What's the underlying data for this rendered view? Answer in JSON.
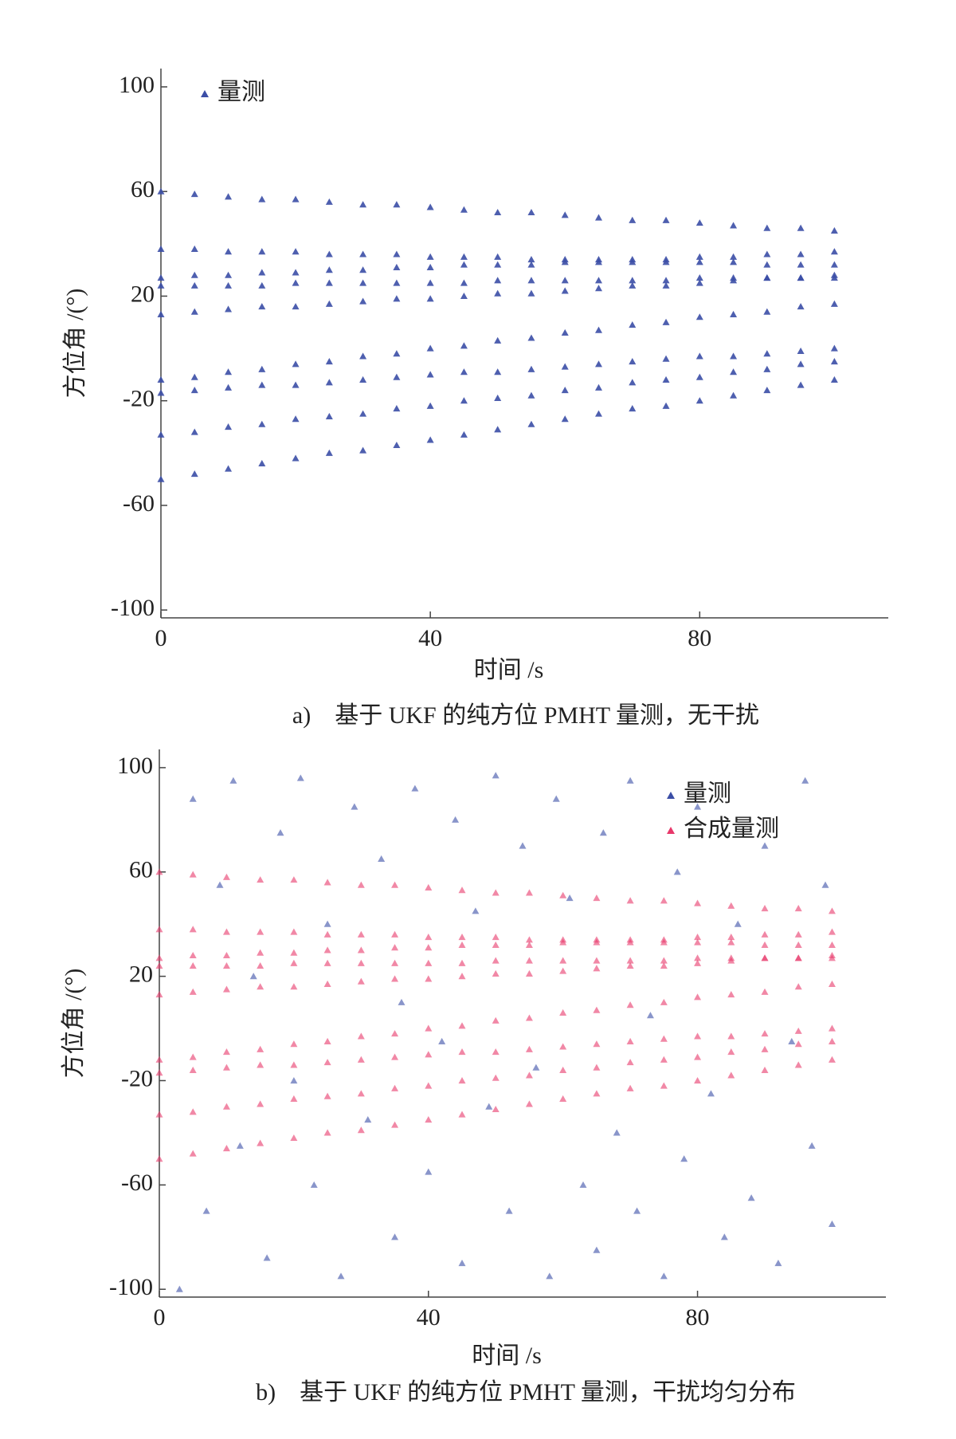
{
  "chart_data": [
    {
      "type": "scatter",
      "caption": "a)　基于 UKF 的纯方位 PMHT 量测，无干扰",
      "x_label": "时间 /s",
      "y_label": "方位角 /(°)",
      "xlim": [
        0,
        108
      ],
      "ylim": [
        -103,
        107
      ],
      "xticks": [
        0,
        40,
        80
      ],
      "yticks": [
        -100,
        -60,
        -20,
        20,
        60,
        100
      ],
      "legend": "upper left",
      "series": [
        {
          "name": "量测",
          "color": "#3b4ea6",
          "x": [
            0,
            5,
            10,
            15,
            20,
            25,
            30,
            35,
            40,
            45,
            50,
            55,
            60,
            65,
            70,
            75,
            80,
            85,
            90,
            95,
            100,
            0,
            5,
            10,
            15,
            20,
            25,
            30,
            35,
            40,
            45,
            50,
            55,
            60,
            65,
            70,
            75,
            80,
            85,
            90,
            95,
            100,
            0,
            5,
            10,
            15,
            20,
            25,
            30,
            35,
            40,
            45,
            50,
            55,
            60,
            65,
            70,
            75,
            80,
            85,
            90,
            95,
            100,
            0,
            5,
            10,
            15,
            20,
            25,
            30,
            35,
            40,
            45,
            50,
            55,
            60,
            65,
            70,
            75,
            80,
            85,
            90,
            95,
            100,
            0,
            5,
            10,
            15,
            20,
            25,
            30,
            35,
            40,
            45,
            50,
            55,
            60,
            65,
            70,
            75,
            80,
            85,
            90,
            95,
            100,
            0,
            5,
            10,
            15,
            20,
            25,
            30,
            35,
            40,
            45,
            50,
            55,
            60,
            65,
            70,
            75,
            80,
            85,
            90,
            95,
            100,
            0,
            5,
            10,
            15,
            20,
            25,
            30,
            35,
            40,
            45,
            50,
            55,
            60,
            65,
            70,
            75,
            80,
            85,
            90,
            95,
            100,
            0,
            5,
            10,
            15,
            20,
            25,
            30,
            35,
            40,
            45,
            50,
            55,
            60,
            65,
            70,
            75,
            80,
            85,
            90,
            95,
            100,
            0,
            5,
            10,
            15,
            20,
            25,
            30,
            35,
            40,
            45,
            50,
            55,
            60,
            65,
            70,
            75,
            80,
            85,
            90,
            95,
            100
          ],
          "values": [
            60,
            59,
            58,
            57,
            57,
            56,
            55,
            55,
            54,
            53,
            52,
            52,
            51,
            50,
            49,
            49,
            48,
            47,
            46,
            46,
            45,
            38,
            38,
            37,
            37,
            37,
            36,
            36,
            36,
            35,
            35,
            35,
            34,
            34,
            34,
            33,
            33,
            33,
            33,
            32,
            32,
            32,
            27,
            28,
            28,
            29,
            29,
            30,
            30,
            31,
            31,
            32,
            32,
            32,
            33,
            33,
            34,
            34,
            35,
            35,
            36,
            36,
            37,
            24,
            24,
            24,
            24,
            25,
            25,
            25,
            25,
            25,
            25,
            26,
            26,
            26,
            26,
            26,
            26,
            27,
            27,
            27,
            27,
            27,
            13,
            14,
            15,
            16,
            16,
            17,
            18,
            19,
            19,
            20,
            21,
            21,
            22,
            23,
            24,
            24,
            25,
            26,
            27,
            27,
            28,
            -12,
            -11,
            -9,
            -8,
            -6,
            -5,
            -3,
            -2,
            0,
            1,
            3,
            4,
            6,
            7,
            9,
            10,
            12,
            13,
            14,
            16,
            17,
            -17,
            -16,
            -15,
            -14,
            -14,
            -13,
            -12,
            -11,
            -10,
            -9,
            -9,
            -8,
            -7,
            -6,
            -5,
            -4,
            -3,
            -3,
            -2,
            -1,
            0,
            -33,
            -32,
            -30,
            -29,
            -27,
            -26,
            -25,
            -23,
            -22,
            -20,
            -19,
            -18,
            -16,
            -15,
            -13,
            -12,
            -11,
            -9,
            -8,
            -6,
            -5,
            -50,
            -48,
            -46,
            -44,
            -42,
            -40,
            -39,
            -37,
            -35,
            -33,
            -31,
            -29,
            -27,
            -25,
            -23,
            -22,
            -20,
            -18,
            -16,
            -14,
            -12
          ]
        }
      ]
    },
    {
      "type": "scatter",
      "caption": "b)　基于 UKF 的纯方位 PMHT 量测，干扰均匀分布",
      "x_label": "时间 /s",
      "y_label": "方位角 /(°)",
      "xlim": [
        0,
        108
      ],
      "ylim": [
        -103,
        107
      ],
      "xticks": [
        0,
        40,
        80
      ],
      "yticks": [
        -100,
        -60,
        -20,
        20,
        60,
        100
      ],
      "legend": "upper right",
      "series": [
        {
          "name": "量测",
          "color": "#3b4ea6",
          "x": [
            3,
            5,
            7,
            9,
            11,
            12,
            14,
            16,
            18,
            20,
            21,
            23,
            25,
            27,
            29,
            31,
            33,
            35,
            36,
            38,
            40,
            42,
            44,
            45,
            47,
            49,
            50,
            52,
            54,
            56,
            58,
            59,
            61,
            63,
            65,
            66,
            68,
            70,
            71,
            73,
            75,
            77,
            78,
            80,
            82,
            84,
            86,
            88,
            90,
            92,
            94,
            96,
            97,
            99,
            100
          ],
          "values": [
            -100,
            88,
            -70,
            55,
            95,
            -45,
            20,
            -88,
            75,
            -20,
            96,
            -60,
            40,
            -95,
            85,
            -35,
            65,
            -80,
            10,
            92,
            -55,
            -5,
            80,
            -90,
            45,
            -30,
            97,
            -70,
            70,
            -15,
            -95,
            88,
            50,
            -60,
            -85,
            75,
            -40,
            95,
            -70,
            5,
            -95,
            60,
            -50,
            85,
            -25,
            -80,
            40,
            -65,
            70,
            -90,
            -5,
            95,
            -45,
            55,
            -75
          ]
        },
        {
          "name": "合成量测",
          "color": "#e8386a",
          "x": [
            0,
            5,
            10,
            15,
            20,
            25,
            30,
            35,
            40,
            45,
            50,
            55,
            60,
            65,
            70,
            75,
            80,
            85,
            90,
            95,
            100,
            0,
            5,
            10,
            15,
            20,
            25,
            30,
            35,
            40,
            45,
            50,
            55,
            60,
            65,
            70,
            75,
            80,
            85,
            90,
            95,
            100,
            0,
            5,
            10,
            15,
            20,
            25,
            30,
            35,
            40,
            45,
            50,
            55,
            60,
            65,
            70,
            75,
            80,
            85,
            90,
            95,
            100,
            0,
            5,
            10,
            15,
            20,
            25,
            30,
            35,
            40,
            45,
            50,
            55,
            60,
            65,
            70,
            75,
            80,
            85,
            90,
            95,
            100,
            0,
            5,
            10,
            15,
            20,
            25,
            30,
            35,
            40,
            45,
            50,
            55,
            60,
            65,
            70,
            75,
            80,
            85,
            90,
            95,
            100,
            0,
            5,
            10,
            15,
            20,
            25,
            30,
            35,
            40,
            45,
            50,
            55,
            60,
            65,
            70,
            75,
            80,
            85,
            90,
            95,
            100,
            0,
            5,
            10,
            15,
            20,
            25,
            30,
            35,
            40,
            45,
            50,
            55,
            60,
            65,
            70,
            75,
            80,
            85,
            90,
            95,
            100,
            0,
            5,
            10,
            15,
            20,
            25,
            30,
            35,
            40,
            45,
            50,
            55,
            60,
            65,
            70,
            75,
            80,
            85,
            90,
            95,
            100,
            0,
            5,
            10,
            15,
            20,
            25,
            30,
            35,
            40,
            45,
            50,
            55,
            60,
            65,
            70,
            75,
            80,
            85,
            90,
            95,
            100
          ],
          "values": [
            60,
            59,
            58,
            57,
            57,
            56,
            55,
            55,
            54,
            53,
            52,
            52,
            51,
            50,
            49,
            49,
            48,
            47,
            46,
            46,
            45,
            38,
            38,
            37,
            37,
            37,
            36,
            36,
            36,
            35,
            35,
            35,
            34,
            34,
            34,
            33,
            33,
            33,
            33,
            32,
            32,
            32,
            27,
            28,
            28,
            29,
            29,
            30,
            30,
            31,
            31,
            32,
            32,
            32,
            33,
            33,
            34,
            34,
            35,
            35,
            36,
            36,
            37,
            24,
            24,
            24,
            24,
            25,
            25,
            25,
            25,
            25,
            25,
            26,
            26,
            26,
            26,
            26,
            26,
            27,
            27,
            27,
            27,
            27,
            13,
            14,
            15,
            16,
            16,
            17,
            18,
            19,
            19,
            20,
            21,
            21,
            22,
            23,
            24,
            24,
            25,
            26,
            27,
            27,
            28,
            -12,
            -11,
            -9,
            -8,
            -6,
            -5,
            -3,
            -2,
            0,
            1,
            3,
            4,
            6,
            7,
            9,
            10,
            12,
            13,
            14,
            16,
            17,
            -17,
            -16,
            -15,
            -14,
            -14,
            -13,
            -12,
            -11,
            -10,
            -9,
            -9,
            -8,
            -7,
            -6,
            -5,
            -4,
            -3,
            -3,
            -2,
            -1,
            0,
            -33,
            -32,
            -30,
            -29,
            -27,
            -26,
            -25,
            -23,
            -22,
            -20,
            -19,
            -18,
            -16,
            -15,
            -13,
            -12,
            -11,
            -9,
            -8,
            -6,
            -5,
            -50,
            -48,
            -46,
            -44,
            -42,
            -40,
            -39,
            -37,
            -35,
            -33,
            -31,
            -29,
            -27,
            -25,
            -23,
            -22,
            -20,
            -18,
            -16,
            -14,
            -12
          ]
        }
      ]
    }
  ]
}
